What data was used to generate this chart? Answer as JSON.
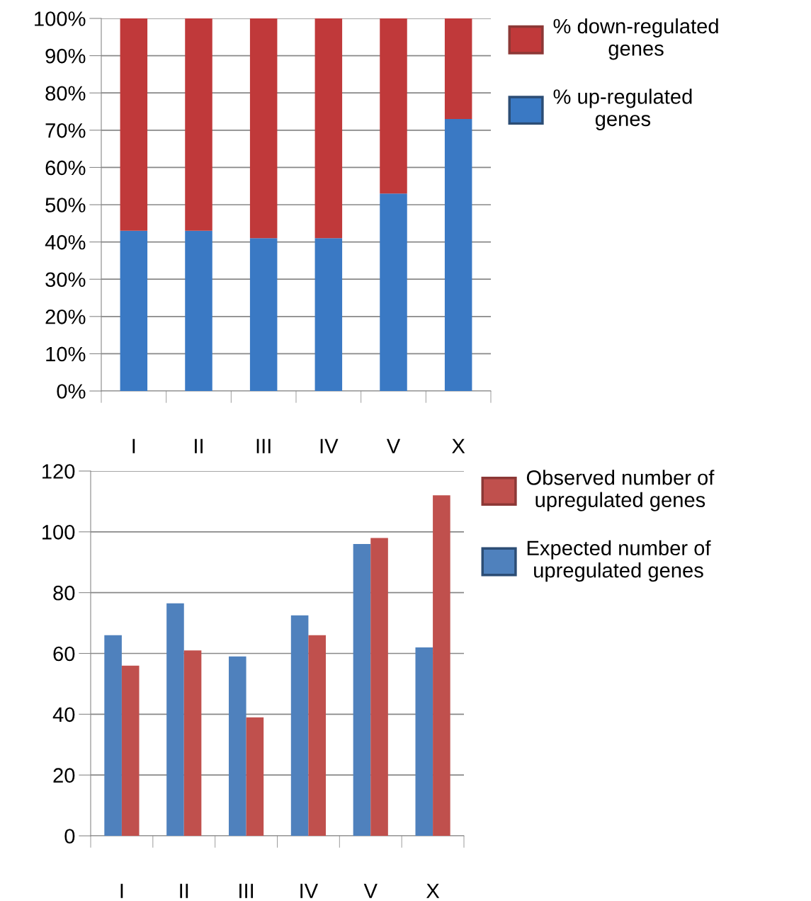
{
  "chart_data": [
    {
      "type": "bar",
      "stacked": true,
      "categories": [
        "I",
        "II",
        "III",
        "IV",
        "V",
        "X"
      ],
      "series": [
        {
          "name": "% up-regulated\ngenes",
          "color": "#3a79c4",
          "values": [
            43,
            43,
            41,
            41,
            53,
            73
          ]
        },
        {
          "name": "% down-regulated\ngenes",
          "color": "#c0393a",
          "values": [
            57,
            57,
            59,
            59,
            47,
            27
          ]
        }
      ],
      "ylim": [
        0,
        100
      ],
      "yticks": [
        {
          "value": 0,
          "label": "0%"
        },
        {
          "value": 10,
          "label": "10%"
        },
        {
          "value": 20,
          "label": "20%"
        },
        {
          "value": 30,
          "label": "30%"
        },
        {
          "value": 40,
          "label": "40%"
        },
        {
          "value": 50,
          "label": "50%"
        },
        {
          "value": 60,
          "label": "60%"
        },
        {
          "value": 70,
          "label": "70%"
        },
        {
          "value": 80,
          "label": "80%"
        },
        {
          "value": 90,
          "label": "90%"
        },
        {
          "value": 100,
          "label": "100%"
        }
      ],
      "grid": "y",
      "legend": "right"
    },
    {
      "type": "bar",
      "categories": [
        "I",
        "II",
        "III",
        "IV",
        "V",
        "X"
      ],
      "series": [
        {
          "name": "Expected number of\nupregulated genes",
          "color": "#4f81bd",
          "values": [
            66,
            76.5,
            59,
            72.5,
            96,
            62
          ]
        },
        {
          "name": "Observed number of\nupregulated genes",
          "color": "#c0504d",
          "values": [
            56,
            61,
            39,
            66,
            98,
            112
          ]
        }
      ],
      "ylim": [
        0,
        120
      ],
      "yticks": [
        0,
        20,
        40,
        60,
        80,
        100,
        120
      ],
      "grid": "y",
      "legend": "right"
    }
  ]
}
